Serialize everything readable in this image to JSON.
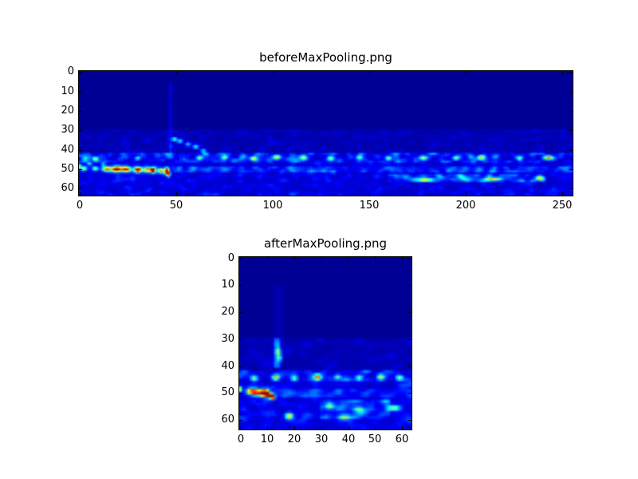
{
  "figure": {
    "background_color": "#ffffff",
    "axes_color": "#000000",
    "text_color": "#000000"
  },
  "chart_data": [
    {
      "type": "heatmap",
      "title": "beforeMaxPooling.png",
      "xlabel": "",
      "ylabel": "",
      "cols": 256,
      "rows": 64,
      "x_range": [
        -0.5,
        255.5
      ],
      "y_range": [
        63.5,
        -0.5
      ],
      "x_ticks": [
        0,
        50,
        100,
        150,
        200,
        250
      ],
      "y_ticks": [
        0,
        10,
        20,
        30,
        40,
        50,
        60
      ],
      "grid": false,
      "legend": null,
      "colormap": "jet",
      "colormap_anchor_colors": {
        "low": "#000080",
        "mid": "#00ffff",
        "high": "#800000"
      },
      "background_value": 0.02,
      "noise_seed": 7,
      "bands": [
        {
          "r0": 30,
          "r1": 42,
          "c0": 0,
          "c1": 256,
          "base": 0.02,
          "amp": 0.2,
          "pow": 2.2
        },
        {
          "r0": 42,
          "r1": 47,
          "c0": 0,
          "c1": 256,
          "base": 0.05,
          "amp": 0.6,
          "pow": 1.7
        },
        {
          "r0": 47,
          "r1": 64,
          "c0": 0,
          "c1": 256,
          "base": 0.05,
          "amp": 0.32,
          "pow": 2.0
        },
        {
          "r0": 49,
          "r1": 52,
          "c0": 48,
          "c1": 256,
          "base": 0.03,
          "amp": 0.25,
          "pow": 1.6
        },
        {
          "r0": 53,
          "r1": 57,
          "c0": 160,
          "c1": 242,
          "base": 0.03,
          "amp": 0.45,
          "pow": 1.6
        }
      ],
      "vlines": [
        {
          "c": 47,
          "r0": 6,
          "r1": 42,
          "w": 1.0,
          "amp": 0.07
        }
      ],
      "blobs": [
        {
          "r": 48.5,
          "c": 0,
          "rx": 0.8,
          "ry": 1.0,
          "a": 0.45
        },
        {
          "r": 49.6,
          "c": 2,
          "rx": 1.5,
          "ry": 1.2,
          "a": 0.5
        },
        {
          "r": 49.6,
          "c": 8,
          "rx": 1.5,
          "ry": 1.1,
          "a": 0.45
        },
        {
          "r": 49.8,
          "c": 14,
          "rx": 2.5,
          "ry": 1.3,
          "a": 0.7
        },
        {
          "r": 50.0,
          "c": 19,
          "rx": 2.5,
          "ry": 1.4,
          "a": 0.95
        },
        {
          "r": 50.0,
          "c": 24,
          "rx": 2.5,
          "ry": 1.4,
          "a": 0.85
        },
        {
          "r": 50.2,
          "c": 30,
          "rx": 2.0,
          "ry": 1.4,
          "a": 0.95
        },
        {
          "r": 50.3,
          "c": 35,
          "rx": 2.2,
          "ry": 1.3,
          "a": 0.7
        },
        {
          "r": 50.4,
          "c": 38,
          "rx": 1.4,
          "ry": 1.3,
          "a": 0.98
        },
        {
          "r": 50.8,
          "c": 42,
          "rx": 1.6,
          "ry": 1.2,
          "a": 0.6
        },
        {
          "r": 50.9,
          "c": 45,
          "rx": 1.2,
          "ry": 1.6,
          "a": 0.95
        },
        {
          "r": 52.5,
          "c": 46,
          "rx": 0.9,
          "ry": 1.4,
          "a": 0.65
        },
        {
          "r": 47.0,
          "c": 5,
          "rx": 1.2,
          "ry": 0.9,
          "a": 0.3
        },
        {
          "r": 47.5,
          "c": 12,
          "rx": 1.2,
          "ry": 0.9,
          "a": 0.28
        },
        {
          "r": 44.6,
          "c": 8,
          "rx": 1.5,
          "ry": 1.0,
          "a": 0.4
        },
        {
          "r": 44.3,
          "c": 30,
          "rx": 1.5,
          "ry": 1.0,
          "a": 0.35
        },
        {
          "r": 44.2,
          "c": 62,
          "rx": 1.6,
          "ry": 1.1,
          "a": 0.45
        },
        {
          "r": 44.0,
          "c": 75,
          "rx": 1.6,
          "ry": 1.1,
          "a": 0.4
        },
        {
          "r": 44.5,
          "c": 90,
          "rx": 1.6,
          "ry": 1.1,
          "a": 0.4
        },
        {
          "r": 43.8,
          "c": 102,
          "rx": 2.0,
          "ry": 1.2,
          "a": 0.6
        },
        {
          "r": 44.0,
          "c": 116,
          "rx": 2.0,
          "ry": 1.2,
          "a": 0.5
        },
        {
          "r": 44.3,
          "c": 130,
          "rx": 1.8,
          "ry": 1.1,
          "a": 0.45
        },
        {
          "r": 44.0,
          "c": 145,
          "rx": 1.6,
          "ry": 1.1,
          "a": 0.4
        },
        {
          "r": 44.3,
          "c": 160,
          "rx": 1.6,
          "ry": 1.1,
          "a": 0.42
        },
        {
          "r": 44.0,
          "c": 178,
          "rx": 1.8,
          "ry": 1.1,
          "a": 0.45
        },
        {
          "r": 44.2,
          "c": 195,
          "rx": 1.6,
          "ry": 1.1,
          "a": 0.4
        },
        {
          "r": 44.0,
          "c": 208,
          "rx": 2.0,
          "ry": 1.2,
          "a": 0.55
        },
        {
          "r": 44.3,
          "c": 228,
          "rx": 1.6,
          "ry": 1.1,
          "a": 0.4
        },
        {
          "r": 44.0,
          "c": 243,
          "rx": 2.5,
          "ry": 1.0,
          "a": 0.55
        },
        {
          "r": 34.5,
          "c": 49,
          "rx": 1.4,
          "ry": 1.1,
          "a": 0.4
        },
        {
          "r": 35.5,
          "c": 52,
          "rx": 1.4,
          "ry": 1.1,
          "a": 0.35
        },
        {
          "r": 37.0,
          "c": 56,
          "rx": 1.4,
          "ry": 1.1,
          "a": 0.3
        },
        {
          "r": 38.5,
          "c": 60,
          "rx": 1.6,
          "ry": 1.1,
          "a": 0.32
        },
        {
          "r": 40.5,
          "c": 64,
          "rx": 1.6,
          "ry": 1.1,
          "a": 0.3
        },
        {
          "r": 55.5,
          "c": 180,
          "rx": 3.0,
          "ry": 0.9,
          "a": 0.45
        },
        {
          "r": 55.0,
          "c": 215,
          "rx": 4.0,
          "ry": 0.9,
          "a": 0.5
        },
        {
          "r": 54.5,
          "c": 238,
          "rx": 2.0,
          "ry": 0.9,
          "a": 0.45
        }
      ]
    },
    {
      "type": "heatmap",
      "title": "afterMaxPooling.png",
      "xlabel": "",
      "ylabel": "",
      "cols": 64,
      "rows": 64,
      "x_range": [
        -0.5,
        63.5
      ],
      "y_range": [
        63.5,
        -0.5
      ],
      "x_ticks": [
        0,
        10,
        20,
        30,
        40,
        50,
        60
      ],
      "y_ticks": [
        0,
        10,
        20,
        30,
        40,
        50,
        60
      ],
      "grid": false,
      "legend": null,
      "colormap": "jet",
      "colormap_anchor_colors": {
        "low": "#000080",
        "mid": "#00ffff",
        "high": "#800000"
      },
      "background_value": 0.02,
      "noise_seed": 11,
      "bands": [
        {
          "r0": 30,
          "r1": 42,
          "c0": 0,
          "c1": 64,
          "base": 0.02,
          "amp": 0.2,
          "pow": 2.2
        },
        {
          "r0": 42,
          "r1": 46,
          "c0": 0,
          "c1": 64,
          "base": 0.05,
          "amp": 0.6,
          "pow": 1.7
        },
        {
          "r0": 46,
          "r1": 64,
          "c0": 0,
          "c1": 64,
          "base": 0.05,
          "amp": 0.32,
          "pow": 2.0
        },
        {
          "r0": 49,
          "r1": 52,
          "c0": 13,
          "c1": 64,
          "base": 0.03,
          "amp": 0.25,
          "pow": 1.6
        },
        {
          "r0": 53,
          "r1": 60,
          "c0": 30,
          "c1": 56,
          "base": 0.03,
          "amp": 0.35,
          "pow": 1.6
        }
      ],
      "vlines": [
        {
          "c": 13.5,
          "r0": 30,
          "r1": 41,
          "w": 1.2,
          "amp": 0.22
        },
        {
          "c": 14.0,
          "r0": 10,
          "r1": 30,
          "w": 2.0,
          "amp": 0.03
        }
      ],
      "blobs": [
        {
          "r": 48.6,
          "c": 0,
          "rx": 0.7,
          "ry": 1.0,
          "a": 0.5
        },
        {
          "r": 49.4,
          "c": 3.5,
          "rx": 1.4,
          "ry": 1.1,
          "a": 0.65
        },
        {
          "r": 49.6,
          "c": 5.5,
          "rx": 1.4,
          "ry": 1.2,
          "a": 0.8
        },
        {
          "r": 49.9,
          "c": 8,
          "rx": 1.4,
          "ry": 1.2,
          "a": 0.9
        },
        {
          "r": 50.1,
          "c": 9.5,
          "rx": 1.1,
          "ry": 1.1,
          "a": 1.0
        },
        {
          "r": 50.8,
          "c": 11,
          "rx": 1.1,
          "ry": 1.0,
          "a": 0.85
        },
        {
          "r": 51.6,
          "c": 12,
          "rx": 0.8,
          "ry": 0.9,
          "a": 0.7
        },
        {
          "r": 44.4,
          "c": 5,
          "rx": 1.2,
          "ry": 1.0,
          "a": 0.4
        },
        {
          "r": 44.2,
          "c": 13,
          "rx": 1.2,
          "ry": 1.0,
          "a": 0.5
        },
        {
          "r": 44.5,
          "c": 20,
          "rx": 1.2,
          "ry": 1.0,
          "a": 0.42
        },
        {
          "r": 44.0,
          "c": 28.5,
          "rx": 1.4,
          "ry": 1.1,
          "a": 0.65
        },
        {
          "r": 44.0,
          "c": 36,
          "rx": 1.2,
          "ry": 1.0,
          "a": 0.4
        },
        {
          "r": 44.3,
          "c": 44,
          "rx": 1.2,
          "ry": 1.0,
          "a": 0.42
        },
        {
          "r": 44.0,
          "c": 52,
          "rx": 1.2,
          "ry": 1.0,
          "a": 0.4
        },
        {
          "r": 44.2,
          "c": 59,
          "rx": 1.2,
          "ry": 1.0,
          "a": 0.45
        },
        {
          "r": 34.5,
          "c": 14,
          "rx": 1.0,
          "ry": 1.4,
          "a": 0.35
        },
        {
          "r": 37.0,
          "c": 14.5,
          "rx": 0.9,
          "ry": 1.2,
          "a": 0.3
        },
        {
          "r": 58.5,
          "c": 18,
          "rx": 1.5,
          "ry": 1.2,
          "a": 0.6
        },
        {
          "r": 55.5,
          "c": 57,
          "rx": 2.5,
          "ry": 0.9,
          "a": 0.5
        },
        {
          "r": 56.0,
          "c": 44,
          "rx": 2.0,
          "ry": 1.0,
          "a": 0.4
        },
        {
          "r": 59.0,
          "c": 38,
          "rx": 2.0,
          "ry": 1.0,
          "a": 0.38
        },
        {
          "r": 55.0,
          "c": 33,
          "rx": 1.5,
          "ry": 1.0,
          "a": 0.35
        }
      ]
    }
  ]
}
